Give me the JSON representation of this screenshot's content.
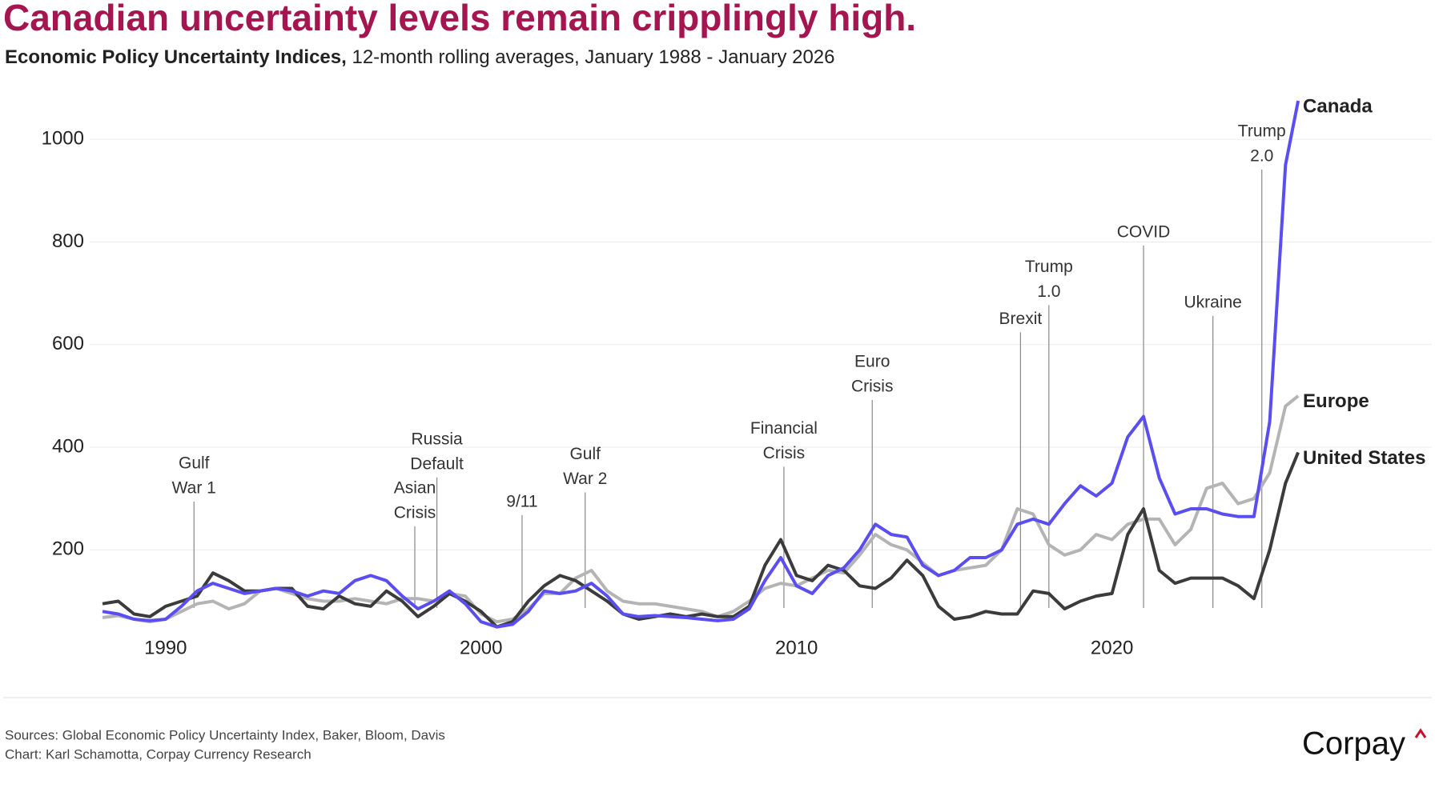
{
  "chart_data": {
    "type": "line",
    "title": "Canadian uncertainty levels remain cripplingly high.",
    "subtitle_bold": "Economic Policy Uncertainty Indices,",
    "subtitle": "12-month rolling averages, January 1988 - January 2026",
    "x": [
      1988,
      1988.5,
      1989,
      1989.5,
      1990,
      1990.5,
      1991,
      1991.5,
      1992,
      1992.5,
      1993,
      1993.5,
      1994,
      1994.5,
      1995,
      1995.5,
      1996,
      1996.5,
      1997,
      1997.5,
      1998,
      1998.5,
      1999,
      1999.5,
      2000,
      2000.5,
      2001,
      2001.5,
      2002,
      2002.5,
      2003,
      2003.5,
      2004,
      2004.5,
      2005,
      2005.5,
      2006,
      2006.5,
      2007,
      2007.5,
      2008,
      2008.5,
      2009,
      2009.5,
      2010,
      2010.5,
      2011,
      2011.5,
      2012,
      2012.5,
      2013,
      2013.5,
      2014,
      2014.5,
      2015,
      2015.5,
      2016,
      2016.5,
      2017,
      2017.5,
      2018,
      2018.5,
      2019,
      2019.5,
      2020,
      2020.5,
      2021,
      2021.5,
      2022,
      2022.5,
      2023,
      2023.5,
      2024,
      2024.5,
      2025,
      2025.5,
      2025.9
    ],
    "series": [
      {
        "name": "Europe",
        "color": "#b4b4b4",
        "values": [
          68,
          72,
          65,
          60,
          65,
          80,
          95,
          100,
          85,
          95,
          120,
          125,
          115,
          105,
          100,
          100,
          105,
          100,
          95,
          105,
          105,
          100,
          115,
          110,
          75,
          60,
          65,
          85,
          115,
          115,
          145,
          160,
          120,
          100,
          95,
          95,
          90,
          85,
          80,
          70,
          80,
          100,
          125,
          135,
          130,
          145,
          160,
          155,
          190,
          230,
          210,
          200,
          175,
          150,
          160,
          165,
          170,
          200,
          280,
          270,
          210,
          190,
          200,
          230,
          220,
          250,
          260,
          260,
          210,
          240,
          320,
          330,
          290,
          300,
          350,
          480,
          500
        ]
      },
      {
        "name": "United States",
        "color": "#3b3b3b",
        "values": [
          95,
          100,
          75,
          70,
          90,
          100,
          110,
          155,
          140,
          120,
          120,
          125,
          125,
          90,
          85,
          110,
          95,
          90,
          120,
          100,
          70,
          90,
          115,
          100,
          80,
          50,
          60,
          100,
          130,
          150,
          140,
          120,
          100,
          75,
          65,
          70,
          75,
          70,
          75,
          70,
          70,
          90,
          170,
          220,
          150,
          140,
          170,
          160,
          130,
          125,
          145,
          180,
          150,
          90,
          65,
          70,
          80,
          75,
          75,
          120,
          115,
          85,
          100,
          110,
          115,
          230,
          280,
          160,
          135,
          145,
          145,
          145,
          130,
          105,
          200,
          330,
          390
        ]
      },
      {
        "name": "Canada",
        "color": "#5a4ef0",
        "values": [
          80,
          75,
          65,
          62,
          65,
          90,
          120,
          135,
          125,
          115,
          120,
          125,
          120,
          110,
          120,
          115,
          140,
          150,
          140,
          110,
          85,
          100,
          120,
          95,
          60,
          50,
          55,
          80,
          120,
          115,
          120,
          135,
          110,
          75,
          70,
          72,
          70,
          68,
          65,
          62,
          65,
          85,
          140,
          185,
          130,
          115,
          150,
          165,
          200,
          250,
          230,
          225,
          170,
          150,
          160,
          185,
          185,
          200,
          250,
          260,
          250,
          290,
          325,
          305,
          330,
          420,
          460,
          340,
          270,
          280,
          280,
          270,
          265,
          265,
          450,
          950,
          1075
        ]
      }
    ],
    "xlim": [
      1988,
      2026
    ],
    "xticks": [
      1990,
      2000,
      2010,
      2020
    ],
    "ylim": [
      40,
      1100
    ],
    "yticks": [
      200,
      400,
      600,
      800,
      1000
    ],
    "grid": true,
    "annotations": [
      {
        "label": [
          "Gulf",
          "War 1"
        ],
        "x": 1990.9,
        "y": 294
      },
      {
        "label": [
          "Asian",
          "Crisis"
        ],
        "x": 1997.9,
        "y": 246
      },
      {
        "label": [
          "Russia",
          "Default"
        ],
        "x": 1998.6,
        "y": 341
      },
      {
        "label": [
          "9/11"
        ],
        "x": 2001.3,
        "y": 268
      },
      {
        "label": [
          "Gulf",
          "War 2"
        ],
        "x": 2003.3,
        "y": 312
      },
      {
        "label": [
          "Financial",
          "Crisis"
        ],
        "x": 2009.6,
        "y": 362
      },
      {
        "label": [
          "Euro",
          "Crisis"
        ],
        "x": 2012.4,
        "y": 492
      },
      {
        "label": [
          "Brexit"
        ],
        "x": 2017.1,
        "y": 624
      },
      {
        "label": [
          "Trump",
          "1.0"
        ],
        "x": 2018.0,
        "y": 677
      },
      {
        "label": [
          "COVID"
        ],
        "x": 2021.0,
        "y": 793
      },
      {
        "label": [
          "Ukraine"
        ],
        "x": 2023.2,
        "y": 656
      },
      {
        "label": [
          "Trump",
          "2.0"
        ],
        "x": 2024.75,
        "y": 941
      }
    ],
    "sources": "Sources: Global Economic Policy Uncertainty Index, Baker, Bloom, Davis",
    "credit": "Chart: Karl Schamotta, Corpay Currency Research",
    "logo": "Corpay"
  }
}
